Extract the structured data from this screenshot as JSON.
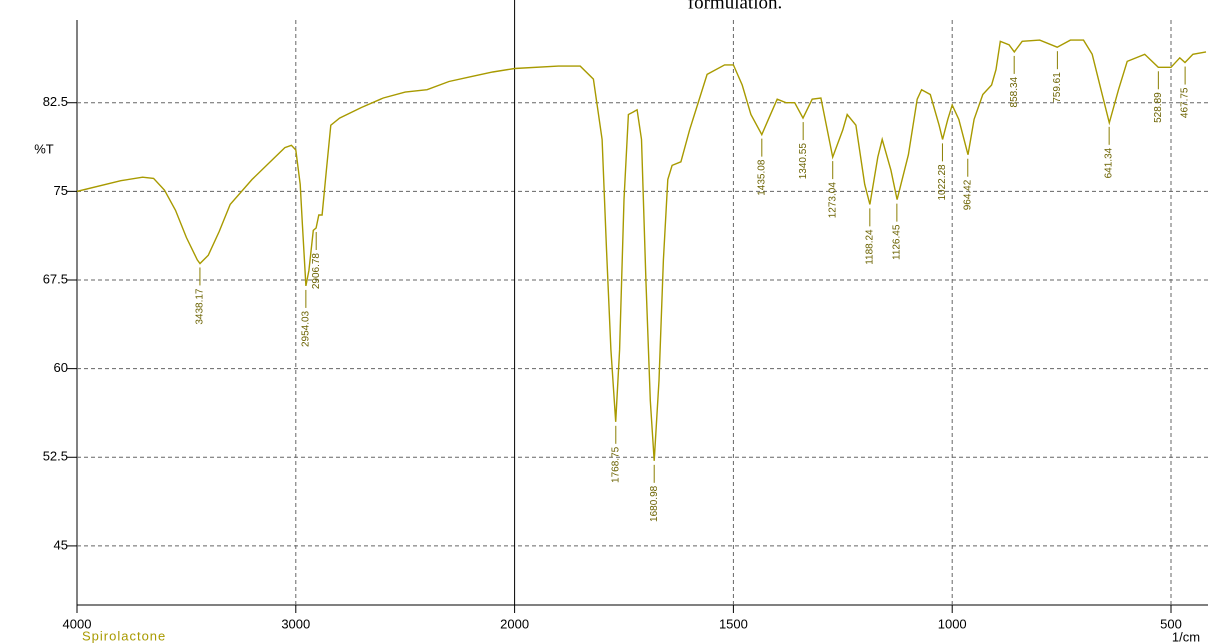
{
  "chart_data": {
    "type": "line",
    "title": "formulation.",
    "ylabel": "%T",
    "xlabel": "1/cm",
    "xlim": [
      4000,
      416
    ],
    "ylim": [
      40,
      89.5
    ],
    "xticks": [
      4000,
      3000,
      2000,
      1500,
      1000,
      500
    ],
    "yticks": [
      45,
      52.5,
      60,
      67.5,
      75,
      82.5
    ],
    "x_break": 2000,
    "grid": true,
    "series": [
      {
        "name": "Spirolactone",
        "color": "#a89a00",
        "x": [
          4000,
          3800,
          3700,
          3650,
          3600,
          3550,
          3500,
          3450,
          3438,
          3400,
          3350,
          3300,
          3200,
          3100,
          3050,
          3020,
          3000,
          2980,
          2970,
          2954,
          2940,
          2920,
          2907,
          2895,
          2880,
          2860,
          2840,
          2800,
          2700,
          2600,
          2500,
          2400,
          2300,
          2200,
          2100,
          2000,
          1900,
          1850,
          1820,
          1800,
          1790,
          1780,
          1769,
          1760,
          1750,
          1740,
          1730,
          1720,
          1710,
          1700,
          1690,
          1681,
          1670,
          1660,
          1650,
          1640,
          1620,
          1600,
          1560,
          1520,
          1500,
          1480,
          1460,
          1435,
          1420,
          1400,
          1380,
          1360,
          1341,
          1320,
          1300,
          1273,
          1250,
          1240,
          1220,
          1200,
          1188,
          1170,
          1160,
          1140,
          1126,
          1100,
          1080,
          1070,
          1050,
          1030,
          1022,
          1010,
          1000,
          985,
          964,
          950,
          930,
          910,
          900,
          890,
          870,
          858,
          840,
          800,
          760,
          730,
          700,
          680,
          660,
          641,
          620,
          600,
          560,
          529,
          500,
          480,
          468,
          450,
          420
        ],
        "values": [
          75.0,
          75.9,
          76.2,
          76.1,
          75.1,
          73.4,
          71.1,
          69.2,
          68.9,
          69.6,
          71.6,
          73.9,
          76.0,
          77.8,
          78.7,
          78.9,
          78.5,
          75.6,
          72.2,
          67.0,
          68.3,
          71.7,
          71.9,
          73.0,
          73.0,
          76.8,
          80.6,
          81.2,
          82.1,
          82.9,
          83.4,
          83.6,
          84.3,
          84.7,
          85.1,
          85.4,
          85.6,
          85.6,
          84.5,
          79.4,
          70.1,
          61.6,
          55.5,
          61.6,
          74.3,
          81.5,
          81.7,
          81.9,
          79.4,
          67.5,
          57.3,
          52.2,
          59.0,
          69.2,
          76.0,
          77.2,
          77.5,
          80.2,
          84.9,
          85.7,
          85.7,
          84.0,
          81.5,
          79.8,
          81.1,
          82.8,
          82.5,
          82.5,
          81.2,
          82.8,
          82.9,
          77.9,
          80.2,
          81.5,
          80.6,
          75.6,
          73.9,
          77.9,
          79.4,
          76.8,
          74.3,
          78.1,
          82.8,
          83.6,
          83.2,
          80.6,
          79.4,
          81.1,
          82.3,
          81.1,
          78.1,
          81.1,
          83.2,
          84.0,
          85.3,
          87.7,
          87.4,
          86.8,
          87.7,
          87.8,
          87.2,
          87.8,
          87.8,
          86.6,
          83.6,
          80.8,
          83.6,
          86.0,
          86.6,
          85.5,
          85.5,
          86.3,
          85.9,
          86.6,
          86.8
        ]
      }
    ],
    "peak_labels": [
      3438.17,
      2954.03,
      2906.78,
      1768.75,
      1680.98,
      1435.08,
      1340.55,
      1273.04,
      1188.24,
      1126.45,
      1022.28,
      964.42,
      858.34,
      759.61,
      641.34,
      528.89,
      467.75
    ],
    "peak_values": [
      68.9,
      67.0,
      71.9,
      55.5,
      52.2,
      79.8,
      81.2,
      77.9,
      73.9,
      74.3,
      79.4,
      78.1,
      86.8,
      87.2,
      80.8,
      85.5,
      85.9
    ]
  }
}
